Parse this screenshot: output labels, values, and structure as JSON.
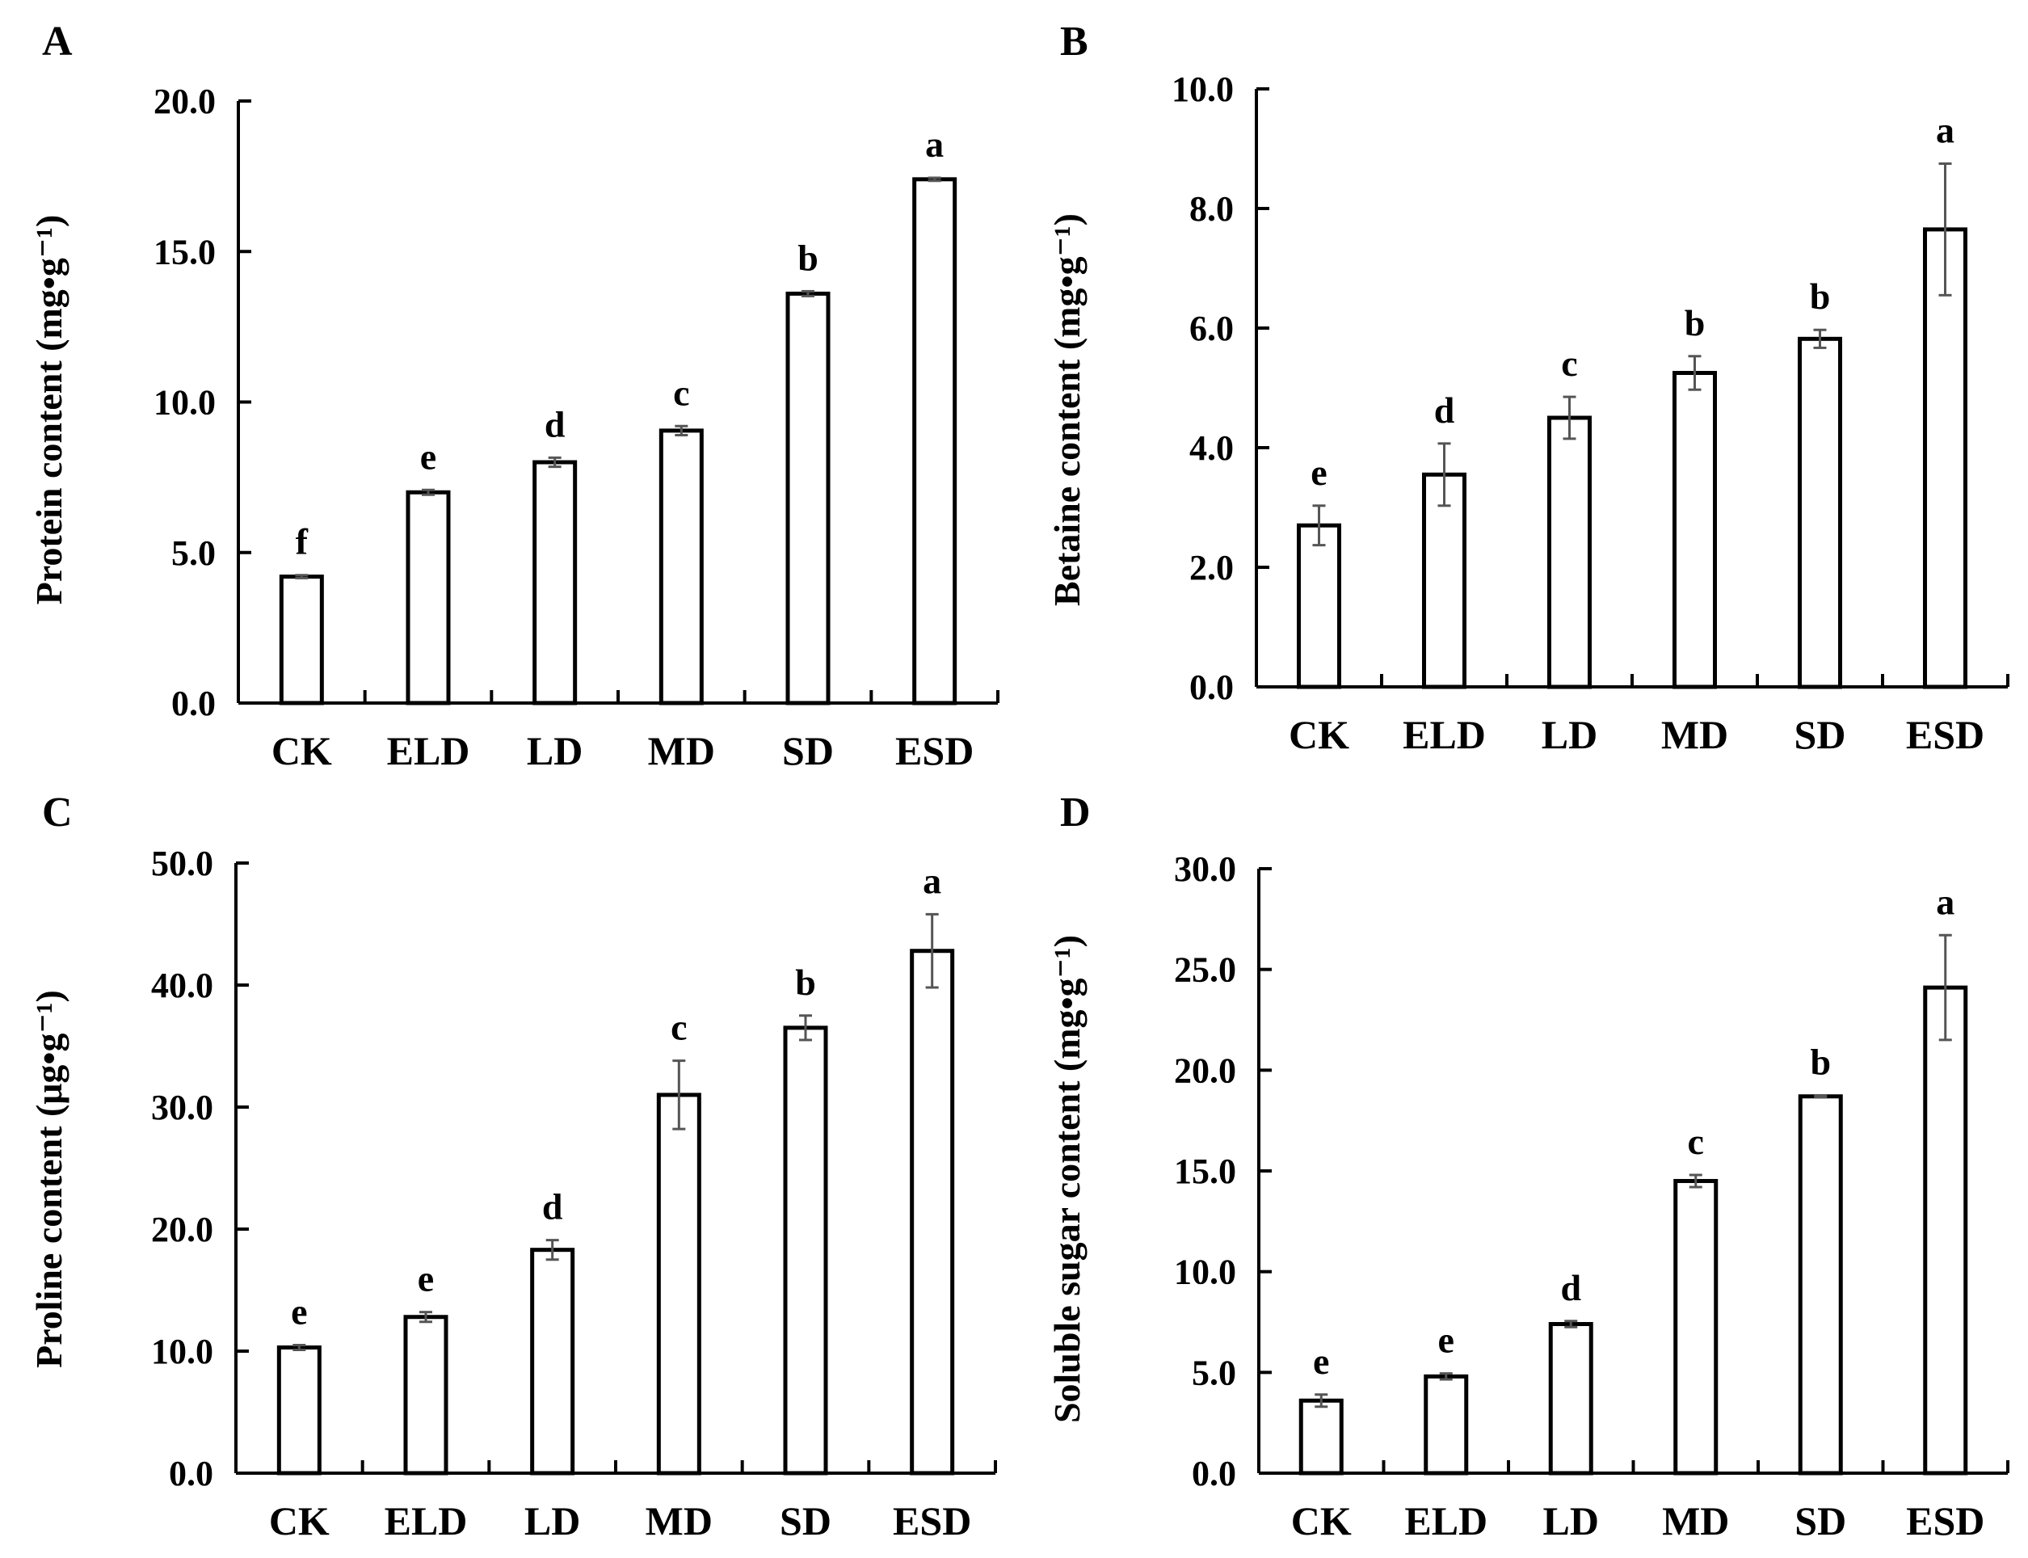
{
  "chart_data": [
    {
      "panel": "A",
      "type": "bar",
      "title": "",
      "xlabel": "",
      "ylabel": "Protein content (mg•g⁻¹)",
      "ylim": [
        0,
        20
      ],
      "yticks": [
        "0.0",
        "5.0",
        "10.0",
        "15.0",
        "20.0"
      ],
      "categories": [
        "CK",
        "ELD",
        "LD",
        "MD",
        "SD",
        "ESD"
      ],
      "values": [
        4.2,
        7.0,
        8.0,
        9.05,
        13.6,
        17.4
      ],
      "errors": [
        0.05,
        0.08,
        0.15,
        0.15,
        0.08,
        0.05
      ],
      "significance": [
        "f",
        "e",
        "d",
        "c",
        "b",
        "a"
      ]
    },
    {
      "panel": "B",
      "type": "bar",
      "title": "",
      "xlabel": "",
      "ylabel": "Betaine content (mg•g⁻¹)",
      "ylim": [
        0,
        10
      ],
      "yticks": [
        "0.0",
        "2.0",
        "4.0",
        "6.0",
        "8.0",
        "10.0"
      ],
      "categories": [
        "CK",
        "ELD",
        "LD",
        "MD",
        "SD",
        "ESD"
      ],
      "values": [
        2.7,
        3.55,
        4.5,
        5.25,
        5.82,
        7.65
      ],
      "errors": [
        0.33,
        0.52,
        0.35,
        0.28,
        0.15,
        1.1
      ],
      "significance": [
        "e",
        "d",
        "c",
        "b",
        "b",
        "a"
      ]
    },
    {
      "panel": "C",
      "type": "bar",
      "title": "",
      "xlabel": "",
      "ylabel": "Proline content (μg•g⁻¹)",
      "ylim": [
        0,
        50
      ],
      "yticks": [
        "0.0",
        "10.0",
        "20.0",
        "30.0",
        "40.0",
        "50.0"
      ],
      "categories": [
        "CK",
        "ELD",
        "LD",
        "MD",
        "SD",
        "ESD"
      ],
      "values": [
        10.3,
        12.8,
        18.3,
        31.0,
        36.5,
        42.8
      ],
      "errors": [
        0.2,
        0.4,
        0.8,
        2.8,
        1.0,
        3.0
      ],
      "significance": [
        "e",
        "e",
        "d",
        "c",
        "b",
        "a"
      ]
    },
    {
      "panel": "D",
      "type": "bar",
      "title": "",
      "xlabel": "",
      "ylabel": "Soluble sugar content (mg•g⁻¹)",
      "ylim": [
        0,
        30
      ],
      "yticks": [
        "0.0",
        "5.0",
        "10.0",
        "15.0",
        "20.0",
        "25.0",
        "30.0"
      ],
      "categories": [
        "CK",
        "ELD",
        "LD",
        "MD",
        "SD",
        "ESD"
      ],
      "values": [
        3.6,
        4.8,
        7.4,
        14.5,
        18.7,
        24.1
      ],
      "errors": [
        0.3,
        0.15,
        0.15,
        0.3,
        0.05,
        2.6
      ],
      "significance": [
        "e",
        "e",
        "d",
        "c",
        "b",
        "a"
      ]
    }
  ]
}
